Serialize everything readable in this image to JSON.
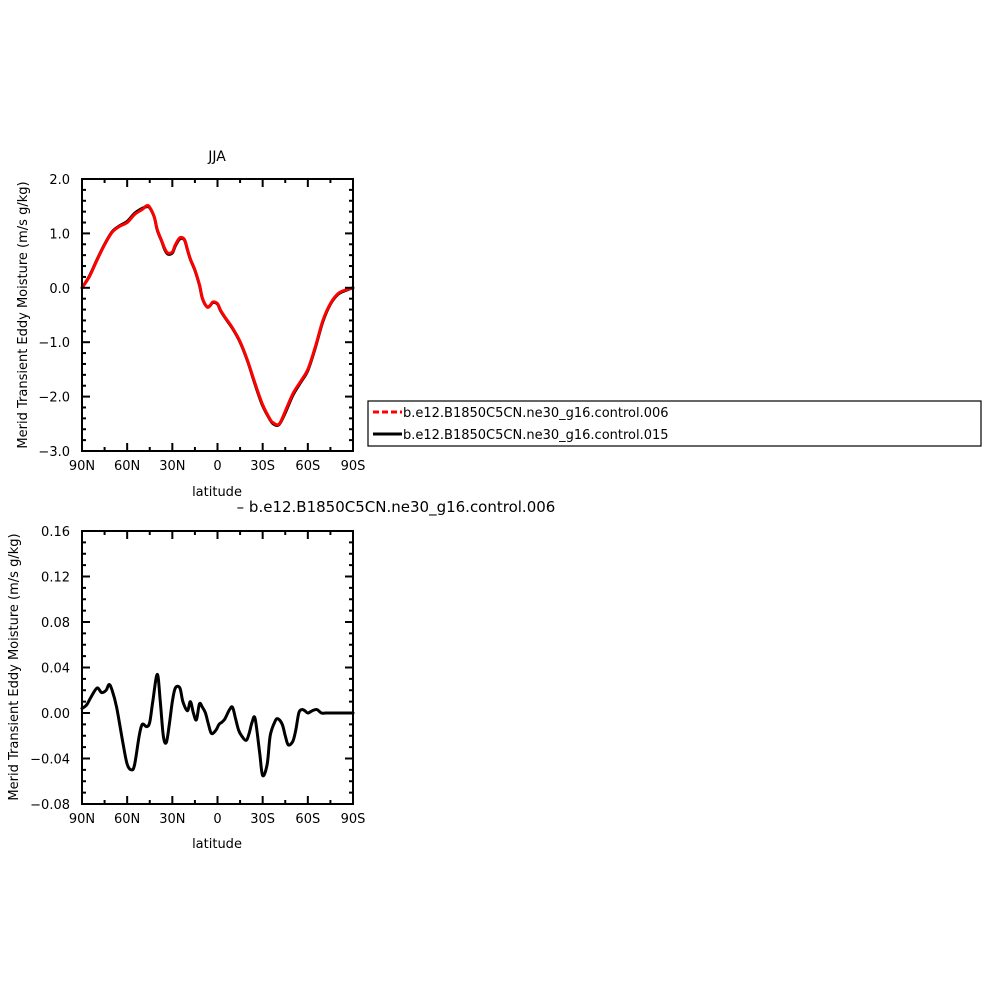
{
  "chart_data": [
    {
      "type": "line",
      "title": "JJA",
      "xlabel": "latitude",
      "ylabel": "Merid Transient Eddy Moisture (m/s g/kg)",
      "xlim": [
        90,
        -90
      ],
      "ylim": [
        -3.0,
        2.0
      ],
      "x_ticks": [
        {
          "value": 90,
          "label": "90N"
        },
        {
          "value": 60,
          "label": "60N"
        },
        {
          "value": 30,
          "label": "30N"
        },
        {
          "value": 0,
          "label": "0"
        },
        {
          "value": -30,
          "label": "30S"
        },
        {
          "value": -60,
          "label": "60S"
        },
        {
          "value": -90,
          "label": "90S"
        }
      ],
      "y_ticks": [
        {
          "value": 2.0,
          "label": "2.0"
        },
        {
          "value": 1.0,
          "label": "1.0"
        },
        {
          "value": 0.0,
          "label": "0.0"
        },
        {
          "value": -1.0,
          "label": "−1.0"
        },
        {
          "value": -2.0,
          "label": "−2.0"
        },
        {
          "value": -3.0,
          "label": "−3.0"
        }
      ],
      "legend": {
        "placement": "right",
        "entries": [
          {
            "name": "b.e12.B1850C5CN.ne30_g16.control.006",
            "color": "#ff0000",
            "dash": "dashed"
          },
          {
            "name": "b.e12.B1850C5CN.ne30_g16.control.015",
            "color": "#000000",
            "dash": "solid"
          }
        ]
      },
      "series": [
        {
          "name": "b.e12.B1850C5CN.ne30_g16.control.015",
          "color": "#000000",
          "x": [
            90,
            85,
            80,
            75,
            70,
            65,
            60,
            55,
            50,
            47,
            45,
            42,
            40,
            37,
            35,
            33,
            30,
            28,
            25,
            22,
            20,
            18,
            15,
            12,
            10,
            7,
            5,
            3,
            0,
            -2,
            -5,
            -10,
            -15,
            -20,
            -25,
            -30,
            -35,
            -37,
            -40,
            -42,
            -45,
            -50,
            -55,
            -60,
            -65,
            -70,
            -75,
            -80,
            -85,
            -90
          ],
          "y": [
            0.0,
            0.22,
            0.52,
            0.8,
            1.03,
            1.14,
            1.22,
            1.37,
            1.46,
            1.49,
            1.47,
            1.3,
            1.06,
            0.85,
            0.7,
            0.62,
            0.64,
            0.77,
            0.9,
            0.88,
            0.7,
            0.52,
            0.32,
            0.05,
            -0.2,
            -0.35,
            -0.33,
            -0.27,
            -0.3,
            -0.42,
            -0.55,
            -0.75,
            -1.0,
            -1.35,
            -1.78,
            -2.17,
            -2.43,
            -2.5,
            -2.53,
            -2.47,
            -2.3,
            -1.98,
            -1.75,
            -1.52,
            -1.1,
            -0.62,
            -0.3,
            -0.12,
            -0.05,
            0.0
          ]
        },
        {
          "name": "b.e12.B1850C5CN.ne30_g16.control.006",
          "color": "#ff0000",
          "x": [
            90,
            85,
            80,
            75,
            70,
            65,
            60,
            55,
            50,
            47,
            45,
            42,
            40,
            37,
            35,
            33,
            30,
            28,
            25,
            22,
            20,
            18,
            15,
            12,
            10,
            7,
            5,
            3,
            0,
            -2,
            -5,
            -10,
            -15,
            -20,
            -25,
            -30,
            -35,
            -37,
            -40,
            -42,
            -45,
            -50,
            -55,
            -60,
            -65,
            -70,
            -75,
            -80,
            -85,
            -90
          ],
          "y": [
            0.0,
            0.21,
            0.51,
            0.79,
            1.02,
            1.13,
            1.2,
            1.35,
            1.44,
            1.51,
            1.48,
            1.3,
            1.07,
            0.86,
            0.72,
            0.64,
            0.66,
            0.79,
            0.92,
            0.89,
            0.71,
            0.53,
            0.33,
            0.06,
            -0.19,
            -0.35,
            -0.33,
            -0.26,
            -0.29,
            -0.41,
            -0.54,
            -0.74,
            -0.99,
            -1.34,
            -1.76,
            -2.15,
            -2.42,
            -2.48,
            -2.52,
            -2.46,
            -2.27,
            -1.95,
            -1.73,
            -1.5,
            -1.08,
            -0.6,
            -0.29,
            -0.11,
            -0.04,
            0.0
          ]
        }
      ]
    },
    {
      "type": "line",
      "title": "– b.e12.B1850C5CN.ne30_g16.control.006",
      "xlabel": "latitude",
      "ylabel": "Merid Transient Eddy Moisture (m/s g/kg)",
      "xlim": [
        90,
        -90
      ],
      "ylim": [
        -0.08,
        0.16
      ],
      "x_ticks": [
        {
          "value": 90,
          "label": "90N"
        },
        {
          "value": 60,
          "label": "60N"
        },
        {
          "value": 30,
          "label": "30N"
        },
        {
          "value": 0,
          "label": "0"
        },
        {
          "value": -30,
          "label": "30S"
        },
        {
          "value": -60,
          "label": "60S"
        },
        {
          "value": -90,
          "label": "90S"
        }
      ],
      "y_ticks": [
        {
          "value": 0.16,
          "label": "0.16"
        },
        {
          "value": 0.12,
          "label": "0.12"
        },
        {
          "value": 0.08,
          "label": "0.08"
        },
        {
          "value": 0.04,
          "label": "0.04"
        },
        {
          "value": 0.0,
          "label": "0.00"
        },
        {
          "value": -0.04,
          "label": "−0.04"
        },
        {
          "value": -0.08,
          "label": "−0.08"
        }
      ],
      "series": [
        {
          "color": "#000000",
          "x": [
            90,
            87,
            84,
            80,
            77,
            74,
            72,
            70,
            67,
            63,
            60,
            57,
            55,
            52,
            50,
            47,
            45,
            43,
            40,
            38,
            36,
            34,
            32,
            30,
            28,
            25,
            23,
            20,
            18,
            16,
            14,
            12,
            10,
            8,
            6,
            4,
            1,
            -1,
            -3,
            -5,
            -8,
            -10,
            -12,
            -14,
            -16,
            -19,
            -21,
            -23,
            -25,
            -28,
            -30,
            -33,
            -35,
            -38,
            -40,
            -43,
            -45,
            -47,
            -50,
            -52,
            -54,
            -56,
            -58,
            -60,
            -63,
            -66,
            -69,
            -72,
            -75,
            -78,
            -81,
            -84,
            -87,
            -90
          ],
          "y": [
            0.004,
            0.007,
            0.014,
            0.022,
            0.018,
            0.02,
            0.025,
            0.02,
            0.005,
            -0.025,
            -0.045,
            -0.05,
            -0.045,
            -0.02,
            -0.01,
            -0.012,
            -0.008,
            0.01,
            0.034,
            0.01,
            -0.02,
            -0.026,
            -0.01,
            0.01,
            0.022,
            0.022,
            0.01,
            0.002,
            0.01,
            0.0,
            -0.006,
            0.008,
            0.005,
            0.0,
            -0.01,
            -0.018,
            -0.015,
            -0.01,
            -0.008,
            -0.005,
            0.003,
            0.005,
            -0.005,
            -0.015,
            -0.02,
            -0.024,
            -0.018,
            -0.008,
            -0.005,
            -0.035,
            -0.055,
            -0.045,
            -0.02,
            -0.008,
            -0.005,
            -0.01,
            -0.02,
            -0.028,
            -0.025,
            -0.015,
            0.0,
            0.003,
            0.002,
            0.0,
            0.002,
            0.003,
            0.0,
            0.0,
            0.0,
            0.0,
            0.0,
            0.0,
            0.0,
            0.0
          ]
        }
      ]
    }
  ]
}
